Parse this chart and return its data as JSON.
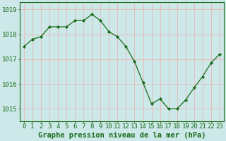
{
  "x": [
    0,
    1,
    2,
    3,
    4,
    5,
    6,
    7,
    8,
    9,
    10,
    11,
    12,
    13,
    14,
    15,
    16,
    17,
    18,
    19,
    20,
    21,
    22,
    23
  ],
  "y": [
    1017.5,
    1017.8,
    1017.9,
    1018.3,
    1018.3,
    1018.3,
    1018.55,
    1018.55,
    1018.8,
    1018.55,
    1018.1,
    1017.9,
    1017.5,
    1016.9,
    1016.05,
    1015.2,
    1015.4,
    1015.0,
    1015.0,
    1015.35,
    1015.85,
    1016.3,
    1016.85,
    1017.2
  ],
  "line_color": "#1a6b1a",
  "marker_color": "#1a6b1a",
  "bg_color": "#cce8e8",
  "grid_color": "#e8b8b8",
  "border_color": "#1a6b1a",
  "xlabel": "Graphe pression niveau de la mer (hPa)",
  "xlabel_color": "#1a6b1a",
  "ylabel_ticks": [
    1015,
    1016,
    1017,
    1018,
    1019
  ],
  "ylim": [
    1014.5,
    1019.3
  ],
  "xlim": [
    -0.5,
    23.5
  ],
  "tick_label_color": "#1a6b1a",
  "axis_label_fontsize": 7.5,
  "tick_fontsize": 6.5
}
